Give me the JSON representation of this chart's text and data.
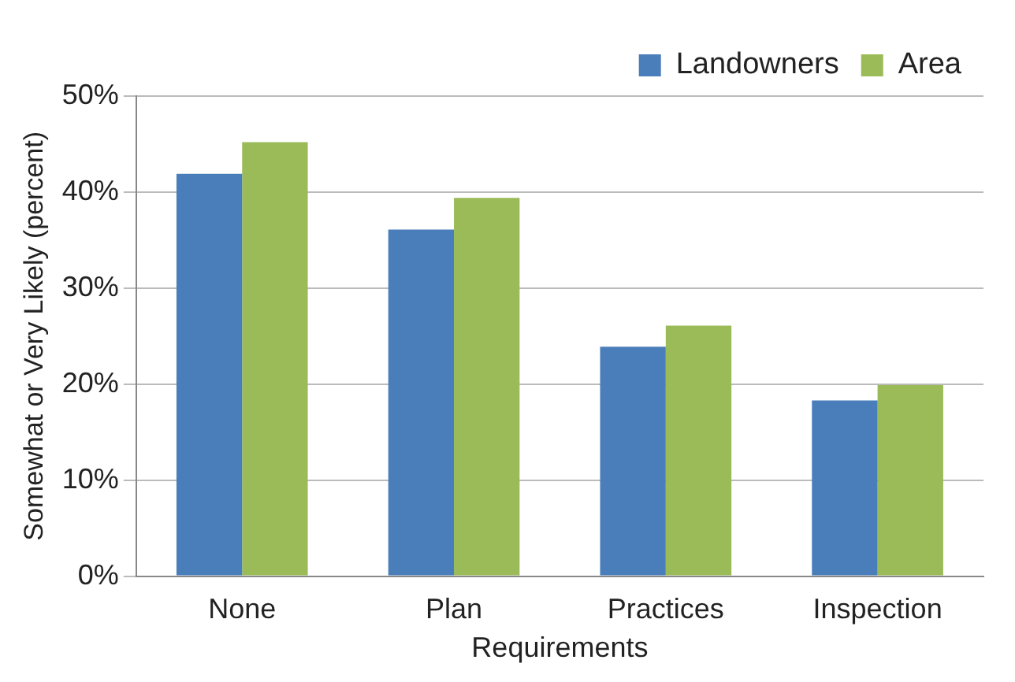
{
  "chart_data": {
    "type": "bar",
    "xlabel": "Requirements",
    "ylabel": "Somewhat or Very Likely (percent)",
    "categories": [
      "None",
      "Plan",
      "Practices",
      "Inspection"
    ],
    "series": [
      {
        "name": "Landowners",
        "color": "#4a7ebb",
        "values": [
          41.9,
          36.1,
          23.9,
          18.3
        ]
      },
      {
        "name": "Area",
        "color": "#9bbb59",
        "values": [
          45.2,
          39.4,
          26.1,
          19.9
        ]
      }
    ],
    "ylim": [
      0,
      50
    ],
    "yticks": [
      {
        "value": 0,
        "label": "0%"
      },
      {
        "value": 10,
        "label": "10%"
      },
      {
        "value": 20,
        "label": "20%"
      },
      {
        "value": 30,
        "label": "30%"
      },
      {
        "value": 40,
        "label": "40%"
      },
      {
        "value": 50,
        "label": "50%"
      }
    ],
    "grid": "y",
    "legend": "top right"
  }
}
